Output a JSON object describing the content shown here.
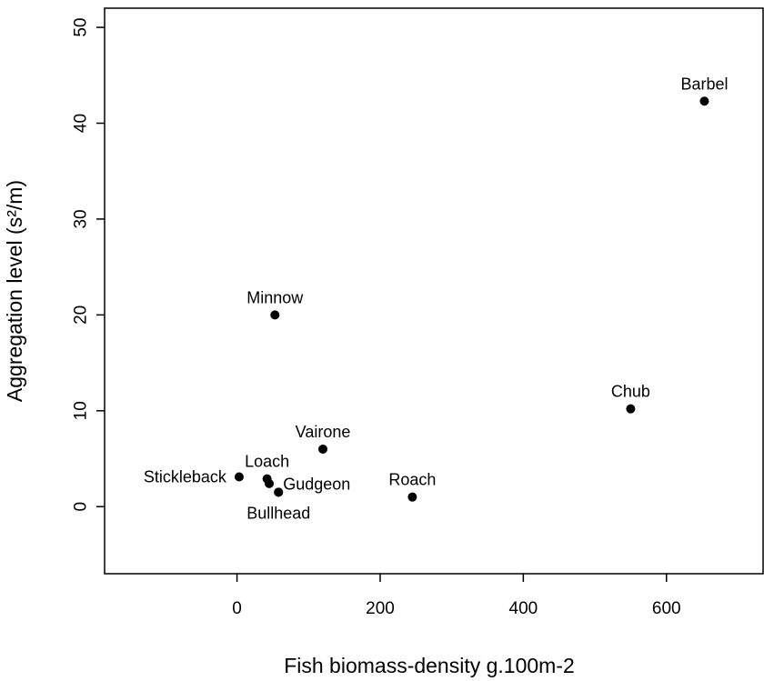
{
  "chart_data": {
    "type": "scatter",
    "title": "",
    "xlabel": "Fish biomass-density g.100m-2",
    "ylabel": "Aggregation level (s²/m)",
    "xlim": [
      -185,
      735
    ],
    "ylim": [
      -7,
      52
    ],
    "x_ticks": [
      0,
      200,
      400,
      600
    ],
    "y_ticks": [
      0,
      10,
      20,
      30,
      40,
      50
    ],
    "x_tick_labels": [
      "0",
      "200",
      "400",
      "600"
    ],
    "y_tick_labels": [
      "0",
      "10",
      "20",
      "30",
      "40",
      "50"
    ],
    "grid": false,
    "legend": "none",
    "marker_color": "#000000",
    "points": [
      {
        "label": "Barbel",
        "x": 653,
        "y": 42.3,
        "label_pos": "above"
      },
      {
        "label": "Minnow",
        "x": 53,
        "y": 20.0,
        "label_pos": "above"
      },
      {
        "label": "Chub",
        "x": 550,
        "y": 10.2,
        "label_pos": "above"
      },
      {
        "label": "Vairone",
        "x": 120,
        "y": 6.0,
        "label_pos": "above"
      },
      {
        "label": "Stickleback",
        "x": 3,
        "y": 3.1,
        "label_pos": "left"
      },
      {
        "label": "Loach",
        "x": 42,
        "y": 2.9,
        "label_pos": "above"
      },
      {
        "label": "",
        "x": 45,
        "y": 2.4,
        "label_pos": "none"
      },
      {
        "label": "Gudgeon",
        "x": 58,
        "y": 1.5,
        "label_pos": "right"
      },
      {
        "label": "Bullhead",
        "x": 58,
        "y": 1.5,
        "label_pos": "below"
      },
      {
        "label": "Roach",
        "x": 245,
        "y": 1.0,
        "label_pos": "above"
      }
    ]
  }
}
